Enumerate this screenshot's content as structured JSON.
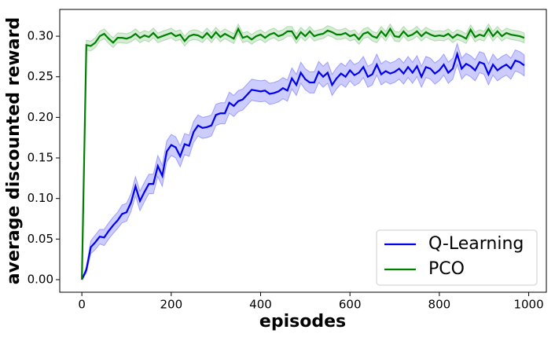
{
  "chart_data": {
    "type": "line",
    "xlabel": "episodes",
    "ylabel": "average discounted reward",
    "x": [
      0,
      10,
      20,
      30,
      40,
      50,
      60,
      70,
      80,
      90,
      100,
      110,
      120,
      130,
      140,
      150,
      160,
      170,
      180,
      190,
      200,
      210,
      220,
      230,
      240,
      250,
      260,
      270,
      280,
      290,
      300,
      310,
      320,
      330,
      340,
      350,
      360,
      370,
      380,
      390,
      400,
      410,
      420,
      430,
      440,
      450,
      460,
      470,
      480,
      490,
      500,
      510,
      520,
      530,
      540,
      550,
      560,
      570,
      580,
      590,
      600,
      610,
      620,
      630,
      640,
      650,
      660,
      670,
      680,
      690,
      700,
      710,
      720,
      730,
      740,
      750,
      760,
      770,
      780,
      790,
      800,
      810,
      820,
      830,
      840,
      850,
      860,
      870,
      880,
      890,
      900,
      910,
      920,
      930,
      940,
      950,
      960,
      970,
      980,
      990
    ],
    "series": [
      {
        "name": "Q-Learning",
        "color": "#0000ee",
        "band_color": "#0000ff",
        "values": [
          0,
          0.012,
          0.04,
          0.046,
          0.053,
          0.052,
          0.06,
          0.067,
          0.073,
          0.081,
          0.083,
          0.095,
          0.115,
          0.097,
          0.108,
          0.118,
          0.118,
          0.14,
          0.128,
          0.158,
          0.166,
          0.163,
          0.152,
          0.167,
          0.165,
          0.182,
          0.19,
          0.187,
          0.188,
          0.19,
          0.203,
          0.205,
          0.205,
          0.218,
          0.214,
          0.22,
          0.222,
          0.228,
          0.234,
          0.233,
          0.232,
          0.233,
          0.229,
          0.23,
          0.232,
          0.236,
          0.233,
          0.248,
          0.24,
          0.255,
          0.247,
          0.243,
          0.243,
          0.256,
          0.25,
          0.255,
          0.24,
          0.248,
          0.254,
          0.25,
          0.258,
          0.252,
          0.255,
          0.262,
          0.25,
          0.253,
          0.265,
          0.253,
          0.257,
          0.254,
          0.256,
          0.26,
          0.254,
          0.262,
          0.255,
          0.263,
          0.25,
          0.262,
          0.26,
          0.254,
          0.258,
          0.265,
          0.255,
          0.26,
          0.278,
          0.26,
          0.266,
          0.263,
          0.258,
          0.268,
          0.266,
          0.253,
          0.265,
          0.258,
          0.262,
          0.265,
          0.26,
          0.27,
          0.268,
          0.264
        ],
        "error": [
          0,
          0.004,
          0.008,
          0.009,
          0.009,
          0.01,
          0.01,
          0.01,
          0.01,
          0.011,
          0.011,
          0.011,
          0.012,
          0.012,
          0.012,
          0.012,
          0.012,
          0.013,
          0.013,
          0.013,
          0.013,
          0.013,
          0.013,
          0.013,
          0.013,
          0.013,
          0.013,
          0.013,
          0.013,
          0.013,
          0.013,
          0.013,
          0.013,
          0.013,
          0.013,
          0.013,
          0.013,
          0.013,
          0.013,
          0.013,
          0.013,
          0.013,
          0.013,
          0.013,
          0.013,
          0.013,
          0.013,
          0.013,
          0.013,
          0.013,
          0.013,
          0.013,
          0.013,
          0.013,
          0.013,
          0.013,
          0.013,
          0.013,
          0.013,
          0.013,
          0.013,
          0.013,
          0.013,
          0.013,
          0.013,
          0.013,
          0.013,
          0.013,
          0.013,
          0.013,
          0.013,
          0.013,
          0.013,
          0.013,
          0.013,
          0.013,
          0.013,
          0.013,
          0.013,
          0.013,
          0.013,
          0.013,
          0.013,
          0.013,
          0.013,
          0.013,
          0.013,
          0.013,
          0.013,
          0.013,
          0.013,
          0.013,
          0.013,
          0.013,
          0.013,
          0.013,
          0.013,
          0.013,
          0.013,
          0.013
        ]
      },
      {
        "name": "PCO",
        "color": "#008000",
        "band_color": "#2ca02c",
        "values": [
          0,
          0.289,
          0.288,
          0.292,
          0.3,
          0.303,
          0.297,
          0.292,
          0.298,
          0.298,
          0.297,
          0.299,
          0.303,
          0.298,
          0.301,
          0.299,
          0.304,
          0.298,
          0.3,
          0.302,
          0.304,
          0.3,
          0.302,
          0.294,
          0.3,
          0.302,
          0.301,
          0.298,
          0.304,
          0.298,
          0.305,
          0.299,
          0.303,
          0.3,
          0.297,
          0.309,
          0.298,
          0.3,
          0.296,
          0.3,
          0.302,
          0.298,
          0.302,
          0.304,
          0.3,
          0.302,
          0.306,
          0.306,
          0.297,
          0.305,
          0.3,
          0.306,
          0.3,
          0.302,
          0.303,
          0.307,
          0.305,
          0.302,
          0.302,
          0.304,
          0.3,
          0.302,
          0.296,
          0.303,
          0.305,
          0.3,
          0.298,
          0.306,
          0.3,
          0.309,
          0.3,
          0.299,
          0.306,
          0.3,
          0.302,
          0.306,
          0.3,
          0.305,
          0.302,
          0.3,
          0.301,
          0.3,
          0.303,
          0.298,
          0.302,
          0.3,
          0.297,
          0.308,
          0.299,
          0.302,
          0.3,
          0.309,
          0.3,
          0.306,
          0.3,
          0.304,
          0.302,
          0.301,
          0.3,
          0.298
        ],
        "error": [
          0,
          0.006,
          0.006,
          0.006,
          0.006,
          0.006,
          0.006,
          0.006,
          0.006,
          0.006,
          0.006,
          0.006,
          0.006,
          0.006,
          0.006,
          0.006,
          0.006,
          0.006,
          0.006,
          0.006,
          0.006,
          0.006,
          0.006,
          0.006,
          0.006,
          0.006,
          0.006,
          0.006,
          0.006,
          0.006,
          0.006,
          0.006,
          0.006,
          0.006,
          0.006,
          0.006,
          0.006,
          0.006,
          0.006,
          0.006,
          0.006,
          0.006,
          0.006,
          0.006,
          0.006,
          0.006,
          0.006,
          0.006,
          0.006,
          0.006,
          0.006,
          0.006,
          0.006,
          0.006,
          0.006,
          0.006,
          0.006,
          0.006,
          0.006,
          0.006,
          0.006,
          0.006,
          0.006,
          0.006,
          0.006,
          0.006,
          0.006,
          0.006,
          0.006,
          0.006,
          0.006,
          0.006,
          0.006,
          0.006,
          0.006,
          0.006,
          0.006,
          0.006,
          0.006,
          0.006,
          0.006,
          0.006,
          0.006,
          0.006,
          0.006,
          0.006,
          0.006,
          0.006,
          0.006,
          0.006,
          0.006,
          0.006,
          0.006,
          0.006,
          0.006,
          0.006,
          0.006,
          0.006,
          0.006,
          0.006
        ]
      }
    ],
    "xlim": [
      -49.5,
      1039.5
    ],
    "xticks": [
      0,
      200,
      400,
      600,
      800,
      1000
    ],
    "ylim": [
      -0.0155,
      0.333
    ],
    "yticks": [
      {
        "value": 0,
        "label": "0.00"
      },
      {
        "value": 0.05,
        "label": "0.05"
      },
      {
        "value": 0.1,
        "label": "0.10"
      },
      {
        "value": 0.15,
        "label": "0.15"
      },
      {
        "value": 0.2,
        "label": "0.20"
      },
      {
        "value": 0.25,
        "label": "0.25"
      },
      {
        "value": 0.3,
        "label": "0.30"
      }
    ],
    "legend": "lower right",
    "grid": false
  }
}
